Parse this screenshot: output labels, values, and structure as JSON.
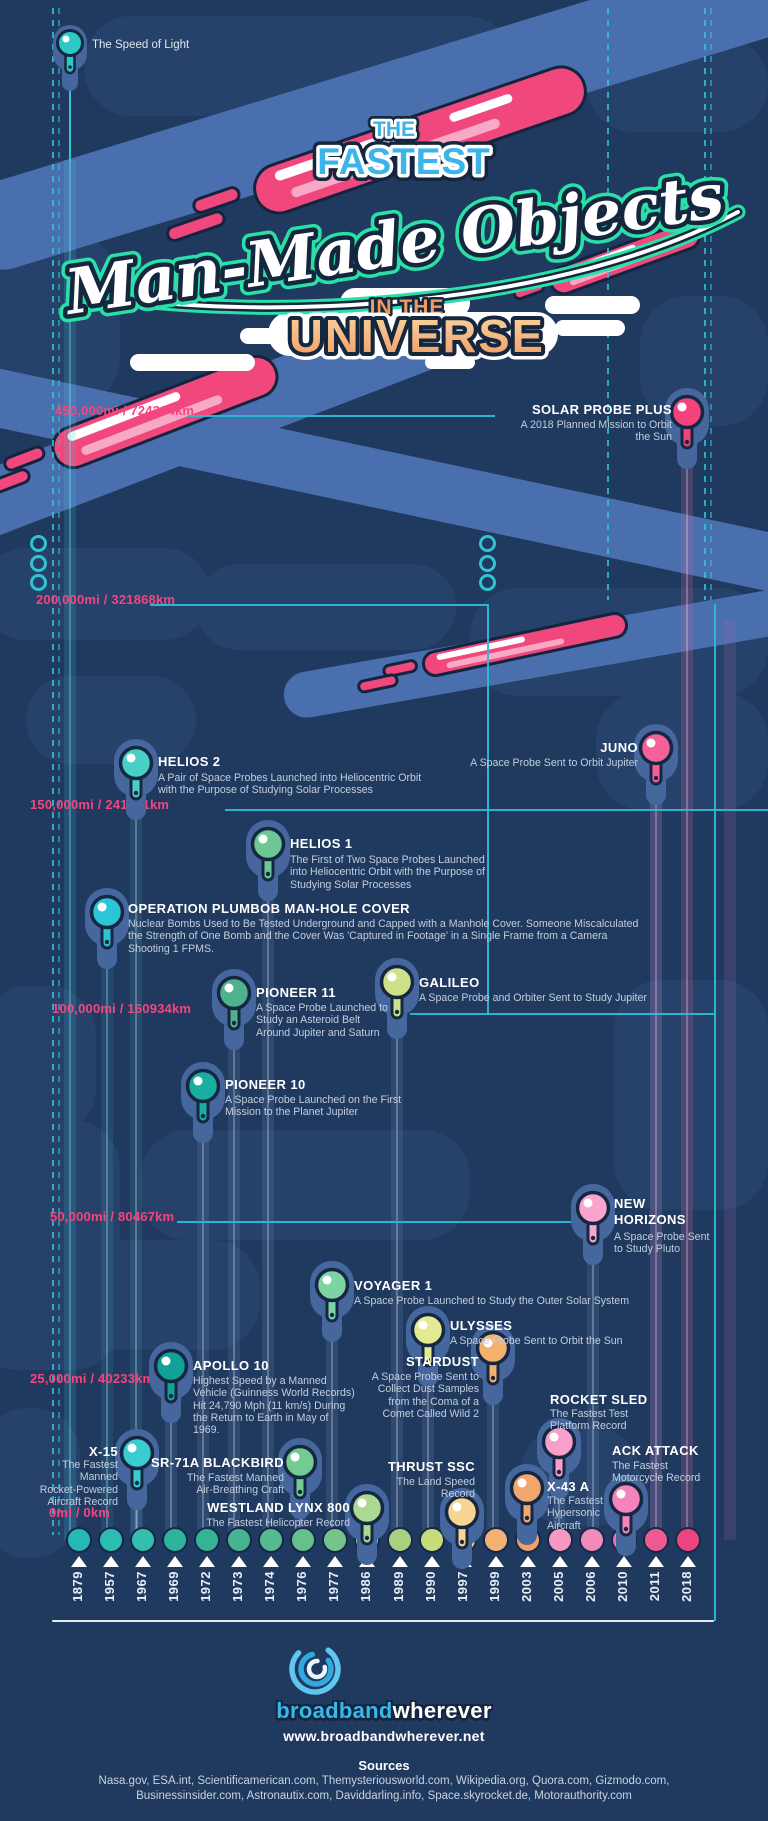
{
  "header": {
    "speed_of_light_label": "The Speed of Light"
  },
  "title": {
    "the": "THE",
    "fastest": "FASTEST",
    "script": "Man-Made Objects",
    "in_the": "IN THE",
    "universe": "UNIVERSE"
  },
  "speed_labels": [
    {
      "id": "s450",
      "text": "450,000mi / 724204km"
    },
    {
      "id": "s200",
      "text": "200,000mi / 321868km"
    },
    {
      "id": "s150",
      "text": "150,000mi / 241401km"
    },
    {
      "id": "s100",
      "text": "100,000mi / 160934km"
    },
    {
      "id": "s50",
      "text": "50,000mi / 80467km"
    },
    {
      "id": "s25",
      "text": "25,000mi / 40233km"
    },
    {
      "id": "s0",
      "text": "0mi / 0km"
    }
  ],
  "objects": [
    {
      "id": "solar_probe_plus",
      "name": "SOLAR PROBE PLUS",
      "description": "A 2018 Planned Mission to Orbit\nthe Sun",
      "color": "#f4427c"
    },
    {
      "id": "juno",
      "name": "JUNO",
      "description": "A Space Probe Sent to Orbit Jupiter",
      "color": "#f75f98"
    },
    {
      "id": "helios_2",
      "name": "HELIOS 2",
      "description": "A Pair of Space Probes Launched into Heliocentric Orbit\nwith the Purpose of Studying Solar Processes",
      "color": "#49cfc4"
    },
    {
      "id": "helios_1",
      "name": "HELIOS 1",
      "description": "The First of Two Space Probes Launched\ninto Heliocentric Orbit with the Purpose of\nStudying Solar Processes",
      "color": "#6ec896"
    },
    {
      "id": "plumbob",
      "name": "OPERATION PLUMBOB MAN-HOLE COVER",
      "description": "Nuclear Bombs Used to Be Tested Underground and Capped with a Manhole Cover. Someone Miscalculated\nthe Strength of One Bomb and the Cover Was 'Captured in Footage' in a Single Frame from a Camera\nShooting 1 FPMS.",
      "color": "#2bc6d6"
    },
    {
      "id": "pioneer_11",
      "name": "PIONEER 11",
      "description": "A Space Probe Launched to\nStudy an Asteroid Belt\nAround Jupiter and Saturn",
      "color": "#4fb18e"
    },
    {
      "id": "galileo",
      "name": "GALILEO",
      "description": "A Space Probe and Orbiter Sent to Study Jupiter",
      "color": "#cfe08b"
    },
    {
      "id": "pioneer_10",
      "name": "PIONEER 10",
      "description": "A Space Probe Launched on the First\nMission to the Planet Jupiter",
      "color": "#19ae9f"
    },
    {
      "id": "new_horizons",
      "name": "NEW\nHORIZONS",
      "description": "A Space Probe Sent\nto Study Pluto",
      "color": "#f9a3cd"
    },
    {
      "id": "voyager_1",
      "name": "VOYAGER 1",
      "description": "A Space Probe Launched to Study the Outer Solar System",
      "color": "#7dd3a2"
    },
    {
      "id": "ulysses",
      "name": "ULYSSES",
      "description": "A Space Probe Sent to Orbit the Sun",
      "color": "#e3ea92"
    },
    {
      "id": "apollo_10",
      "name": "APOLLO 10",
      "description": "Highest Speed by a Manned\nVehicle (Guinness World Records)\nHit 24,790 Mph (11 km/s) During\nthe Return to Earth in May of\n1969.",
      "color": "#12a195"
    },
    {
      "id": "stardust",
      "name": "STARDUST",
      "description": "A Space Probe Sent to\nCollect Dust Samples\nfrom the Coma of a\nComet Called Wild 2",
      "color": "#f6b06e"
    },
    {
      "id": "rocket_sled",
      "name": "ROCKET SLED",
      "description": "The Fastest Test\nPlatform Record",
      "color": "#f99fcb"
    },
    {
      "id": "x_15",
      "name": "X-15",
      "description": "The Fastest\nManned\nRocket-Powered\nAircraft Record",
      "color": "#39cdd2"
    },
    {
      "id": "sr_71a",
      "name": "SR-71A BLACKBIRD",
      "description": "The Fastest Manned\nAir-Breathing Craft",
      "color": "#72cb90"
    },
    {
      "id": "westland",
      "name": "WESTLAND LYNX 800",
      "description": "The Fastest Helicopter Record",
      "color": "#abd893"
    },
    {
      "id": "thrust_ssc",
      "name": "THRUST SSC",
      "description": "The Land Speed\nRecord",
      "color": "#f7d494"
    },
    {
      "id": "x_43a",
      "name": "X-43 A",
      "description": "The Fastest\nHypersonic\nAircraft",
      "color": "#f2a76f"
    },
    {
      "id": "ack_attack",
      "name": "ACK ATTACK",
      "description": "The Fastest\nMotorcycle Record",
      "color": "#f584bb"
    }
  ],
  "timeline": {
    "years": [
      "1879",
      "1957",
      "1967",
      "1969",
      "1972",
      "1973",
      "1974",
      "1976",
      "1977",
      "1986",
      "1989",
      "1990",
      "1997",
      "1999",
      "2003",
      "2005",
      "2006",
      "2010",
      "2011",
      "2018"
    ],
    "dot_colors": [
      "#27b8b2",
      "#2bbcb2",
      "#33bfad",
      "#2fb39d",
      "#36b295",
      "#47b491",
      "#55ba8d",
      "#66c08b",
      "#77c48a",
      "#8cca86",
      "#a7d17e",
      "#c6dc7a",
      "#f2cd85",
      "#f3b274",
      "#f3a06c",
      "#f49ac2",
      "#f18bba",
      "#ef74a5",
      "#ee5b92",
      "#ec4480"
    ]
  },
  "footer": {
    "logo_primary": "broadband",
    "logo_secondary": "wherever",
    "url": "www.broadbandwherever.net",
    "sources_title": "Sources",
    "sources_line1": "Nasa.gov, ESA.int, Scientificamerican.com, Themysteriousworld.com, Wikipedia.org, Quora.com, Gizmodo.com,",
    "sources_line2": "Businessinsider.com, Astronautix.com, Daviddarling.info, Space.skyrocket.de, Motorauthority.com"
  },
  "chart_data": {
    "type": "scatter",
    "title": "The Fastest Man-Made Objects in the Universe",
    "x_axis_years": [
      "1879",
      "1957",
      "1967",
      "1969",
      "1972",
      "1973",
      "1974",
      "1976",
      "1977",
      "1986",
      "1989",
      "1990",
      "1997",
      "1999",
      "2003",
      "2005",
      "2006",
      "2010",
      "2011",
      "2018"
    ],
    "y_axis_speed_labels": [
      "450,000mi / 724204km",
      "200,000mi / 321868km",
      "150,000mi / 241401km",
      "100,000mi / 160934km",
      "50,000mi / 80467km",
      "25,000mi / 40233km",
      "0mi / 0km"
    ],
    "points": [
      {
        "name": "The Speed of Light",
        "year": "1879",
        "speed_band": "above 450,000mi"
      },
      {
        "name": "Solar Probe Plus",
        "year": "2018",
        "speed_band": "~450,000mi"
      },
      {
        "name": "Juno",
        "year": "2011",
        "speed_band": "~160,000mi"
      },
      {
        "name": "Helios 2",
        "year": "1976",
        "speed_band": "~155,000mi"
      },
      {
        "name": "Helios 1",
        "year": "1974",
        "speed_band": "~145,000mi"
      },
      {
        "name": "Operation Plumbob Man-Hole Cover",
        "year": "1957",
        "speed_band": "~130,000mi"
      },
      {
        "name": "Pioneer 11",
        "year": "1973",
        "speed_band": "~110,000mi"
      },
      {
        "name": "Galileo",
        "year": "1989",
        "speed_band": "~108,000mi"
      },
      {
        "name": "Pioneer 10",
        "year": "1972",
        "speed_band": "~90,000mi"
      },
      {
        "name": "New Horizons",
        "year": "2006",
        "speed_band": "~52,000mi"
      },
      {
        "name": "Voyager 1",
        "year": "1977",
        "speed_band": "~38,000mi"
      },
      {
        "name": "Ulysses",
        "year": "1990",
        "speed_band": "~34,000mi"
      },
      {
        "name": "Apollo 10",
        "year": "1969",
        "speed_band": "~25,000mi"
      },
      {
        "name": "Stardust",
        "year": "1999",
        "speed_band": "~24,000mi"
      },
      {
        "name": "Rocket Sled",
        "year": "2005",
        "speed_band": "~6,500mi"
      },
      {
        "name": "X-15",
        "year": "1967",
        "speed_band": "~4,500mi"
      },
      {
        "name": "SR-71A Blackbird",
        "year": "1976",
        "speed_band": "~2,200mi"
      },
      {
        "name": "Westland Lynx 800",
        "year": "1986",
        "speed_band": "~250mi"
      },
      {
        "name": "Thrust SSC",
        "year": "1997",
        "speed_band": "~760mi"
      },
      {
        "name": "X-43 A",
        "year": "2003",
        "speed_band": "~7,000mi"
      },
      {
        "name": "Ack Attack",
        "year": "2010",
        "speed_band": "~380mi"
      }
    ]
  }
}
